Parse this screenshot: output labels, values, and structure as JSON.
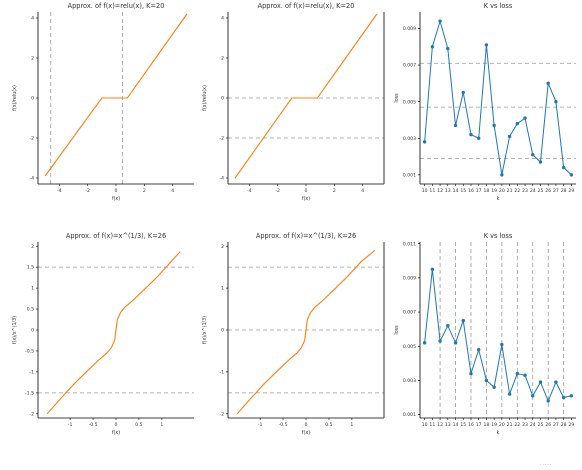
{
  "chart_data": [
    {
      "type": "line",
      "title": "Approx. of f(x)=relu(x), K=20",
      "xlabel": "f(x)",
      "ylabel": "f(x)/relu(x)",
      "xlim": [
        -5.5,
        5.5
      ],
      "ylim": [
        -4.3,
        4.3
      ],
      "xticks": [
        -4,
        -2,
        0,
        2,
        4
      ],
      "yticks": [
        -4,
        -2,
        0,
        2,
        4
      ],
      "vlines": [
        -4.6,
        0.45
      ],
      "hlines": [],
      "right_axis_line": false,
      "series": [
        {
          "color": "#ff7f0e",
          "x": [
            -5.0,
            -1.0,
            0.8,
            5.0
          ],
          "y": [
            -3.9,
            0.0,
            0.0,
            4.2
          ]
        }
      ]
    },
    {
      "type": "line",
      "title": "Approx. of f(x)=relu(x), K=20",
      "xlabel": "f(x)",
      "ylabel": "f(x)/relu(x)",
      "xlim": [
        -5.5,
        5.5
      ],
      "ylim": [
        -4.3,
        4.3
      ],
      "xticks": [
        -4,
        -2,
        0,
        2,
        4
      ],
      "yticks": [
        -4,
        -2,
        0,
        2,
        4
      ],
      "vlines": [],
      "hlines": [
        0.0,
        -2.0
      ],
      "right_axis_line": true,
      "series": [
        {
          "color": "#ff7f0e",
          "x": [
            -5.0,
            -1.0,
            0.8,
            5.0
          ],
          "y": [
            -4.0,
            0.0,
            0.0,
            4.2
          ]
        }
      ]
    },
    {
      "type": "line",
      "title": "K vs loss",
      "xlabel": "k",
      "ylabel": "loss",
      "categories": [
        "10",
        "11",
        "12",
        "13",
        "14",
        "15",
        "16",
        "17",
        "18",
        "19",
        "20",
        "21",
        "22",
        "23",
        "24",
        "25",
        "26",
        "27",
        "28",
        "29"
      ],
      "xlim": [
        9.4,
        29.6
      ],
      "ylim": [
        0.0005,
        0.0099
      ],
      "yticks": [
        0.001,
        0.003,
        0.005,
        0.007,
        0.009
      ],
      "vlines": [],
      "hlines": [
        0.0019,
        0.0047,
        0.0071
      ],
      "series": [
        {
          "color": "#1f77b4",
          "x": [
            10,
            11,
            12,
            13,
            14,
            15,
            16,
            17,
            18,
            19,
            20,
            21,
            22,
            23,
            24,
            25,
            26,
            27,
            28,
            29
          ],
          "y": [
            0.0028,
            0.008,
            0.0094,
            0.0079,
            0.0037,
            0.0055,
            0.0032,
            0.003,
            0.0081,
            0.0037,
            0.001,
            0.0031,
            0.0038,
            0.0041,
            0.0021,
            0.0017,
            0.006,
            0.005,
            0.0014,
            0.001
          ]
        }
      ]
    },
    {
      "type": "line",
      "title": "Approx. of f(x)=x^(1/3), K=26",
      "xlabel": "f(x)",
      "ylabel": "f(x)/x^(1/3)",
      "xlim": [
        -1.7,
        1.7
      ],
      "ylim": [
        -2.1,
        2.1
      ],
      "xticks": [
        -1,
        -0.5,
        0,
        0.5,
        1
      ],
      "yticks": [
        -2.0,
        -1.5,
        -1.0,
        -0.5,
        0.0,
        0.5,
        1.0,
        1.5,
        2.0
      ],
      "vlines": [],
      "hlines": [
        1.5,
        -1.5
      ],
      "right_axis_line": false,
      "series": [
        {
          "color": "#ff7f0e",
          "x": [
            -1.5,
            -1.2,
            -0.9,
            -0.6,
            -0.35,
            -0.2,
            -0.1,
            -0.03,
            0.0,
            0.03,
            0.1,
            0.2,
            0.35,
            0.6,
            0.9,
            1.2,
            1.4
          ],
          "y": [
            -2.0,
            -1.63,
            -1.27,
            -0.95,
            -0.69,
            -0.55,
            -0.42,
            -0.25,
            0.0,
            0.25,
            0.42,
            0.55,
            0.69,
            0.95,
            1.27,
            1.63,
            1.87
          ]
        }
      ]
    },
    {
      "type": "line",
      "title": "Approx. of f(x)=x^(1/3), K=26",
      "xlabel": "f(x)",
      "ylabel": "f(x)/x^(1/3)",
      "xlim": [
        -1.7,
        1.7
      ],
      "ylim": [
        -2.1,
        2.1
      ],
      "xticks": [
        -1,
        -0.5,
        0,
        0.5,
        1
      ],
      "yticks": [
        -2,
        -1,
        0,
        1,
        2
      ],
      "vlines": [],
      "hlines": [
        1.5,
        0.0,
        -1.5
      ],
      "right_axis_line": true,
      "series": [
        {
          "color": "#ff7f0e",
          "x": [
            -1.5,
            -1.2,
            -0.9,
            -0.6,
            -0.35,
            -0.2,
            -0.1,
            -0.03,
            0.0,
            0.03,
            0.1,
            0.2,
            0.35,
            0.6,
            0.9,
            1.2,
            1.5
          ],
          "y": [
            -2.0,
            -1.63,
            -1.27,
            -0.95,
            -0.69,
            -0.55,
            -0.42,
            -0.25,
            0.0,
            0.25,
            0.42,
            0.55,
            0.69,
            0.95,
            1.27,
            1.63,
            1.9
          ]
        }
      ]
    },
    {
      "type": "line",
      "title": "K vs loss",
      "xlabel": "k",
      "ylabel": "loss",
      "categories": [
        "10",
        "11",
        "12",
        "13",
        "14",
        "15",
        "16",
        "17",
        "18",
        "19",
        "20",
        "21",
        "22",
        "23",
        "24",
        "25",
        "26",
        "27",
        "28",
        "29"
      ],
      "xlim": [
        9.4,
        29.6
      ],
      "ylim": [
        0.0008,
        0.0111
      ],
      "yticks": [
        0.001,
        0.003,
        0.005,
        0.007,
        0.009,
        0.011
      ],
      "vlines": [
        12,
        14,
        16,
        18,
        20,
        22,
        24,
        26,
        28
      ],
      "hlines": [],
      "series": [
        {
          "color": "#1f77b4",
          "x": [
            10,
            11,
            12,
            13,
            14,
            15,
            16,
            17,
            18,
            19,
            20,
            21,
            22,
            23,
            24,
            25,
            26,
            27,
            28,
            29
          ],
          "y": [
            0.0052,
            0.0095,
            0.0053,
            0.0062,
            0.0052,
            0.0065,
            0.0034,
            0.0048,
            0.003,
            0.0026,
            0.0051,
            0.0022,
            0.0034,
            0.0033,
            0.0021,
            0.0029,
            0.0018,
            0.0029,
            0.002,
            0.0021
          ]
        }
      ]
    }
  ]
}
